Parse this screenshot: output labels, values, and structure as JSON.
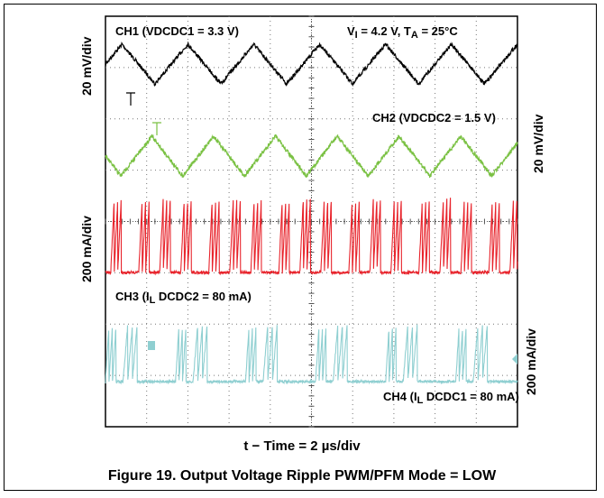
{
  "chart_data": {
    "type": "line",
    "title": "Figure 19. Output Voltage Ripple PWM/PFM Mode = LOW",
    "xlabel": "t − Time = 2 µs/div",
    "conditions": {
      "VI": "4.2 V",
      "TA": "25°C"
    },
    "grid": true,
    "xlim": [
      0,
      20
    ],
    "x_unit": "µs",
    "series": [
      {
        "name": "CH1 (VDCDC1 = 3.3 V)",
        "scale": "20 mV/div",
        "color": "#000000",
        "waveform": "triangle",
        "period_us": 3.2,
        "amplitude_pp_mV": 28
      },
      {
        "name": "CH2 (VDCDC2 = 1.5 V)",
        "scale": "20 mV/div",
        "color": "#7ac143",
        "waveform": "triangle",
        "period_us": 3.0,
        "amplitude_pp_mV": 26
      },
      {
        "name": "CH3 (IL DCDC2 = 80 mA)",
        "scale": "200 mA/div",
        "color": "#e8232b",
        "waveform": "pfm burst",
        "period_us": 3.4,
        "peak_mA": 420
      },
      {
        "name": "CH4 (IL DCDC1 = 80 mA)",
        "scale": "200 mA/div",
        "color": "#8fcfd1",
        "waveform": "pfm burst",
        "period_us": 3.4,
        "peak_mA": 300
      }
    ]
  },
  "labels": {
    "ch1": "CH1 (VDCDC1 = 3.3 V)",
    "cond_vi_pre": "V",
    "cond_vi_sub": "I",
    "cond_vi_post": " = 4.2 V,  T",
    "cond_ta_sub": "A",
    "cond_ta_post": " = 25°C",
    "ch2": "CH2 (VDCDC2 = 1.5 V)",
    "ch3_pre": "CH3 (I",
    "ch3_sub": "L",
    "ch3_post": " DCDC2 = 80 mA)",
    "ch4_pre": "CH4 (I",
    "ch4_sub": "L",
    "ch4_post": " DCDC1 = 80 mA)",
    "scale_ch1": "20 mV/div",
    "scale_ch2": "20 mV/div",
    "scale_ch3": "200 mA/div",
    "scale_ch4": "200 mA/div",
    "xlabel": "t − Time = 2 µs/div",
    "caption": "Figure 19. Output Voltage Ripple PWM/PFM Mode = LOW"
  }
}
